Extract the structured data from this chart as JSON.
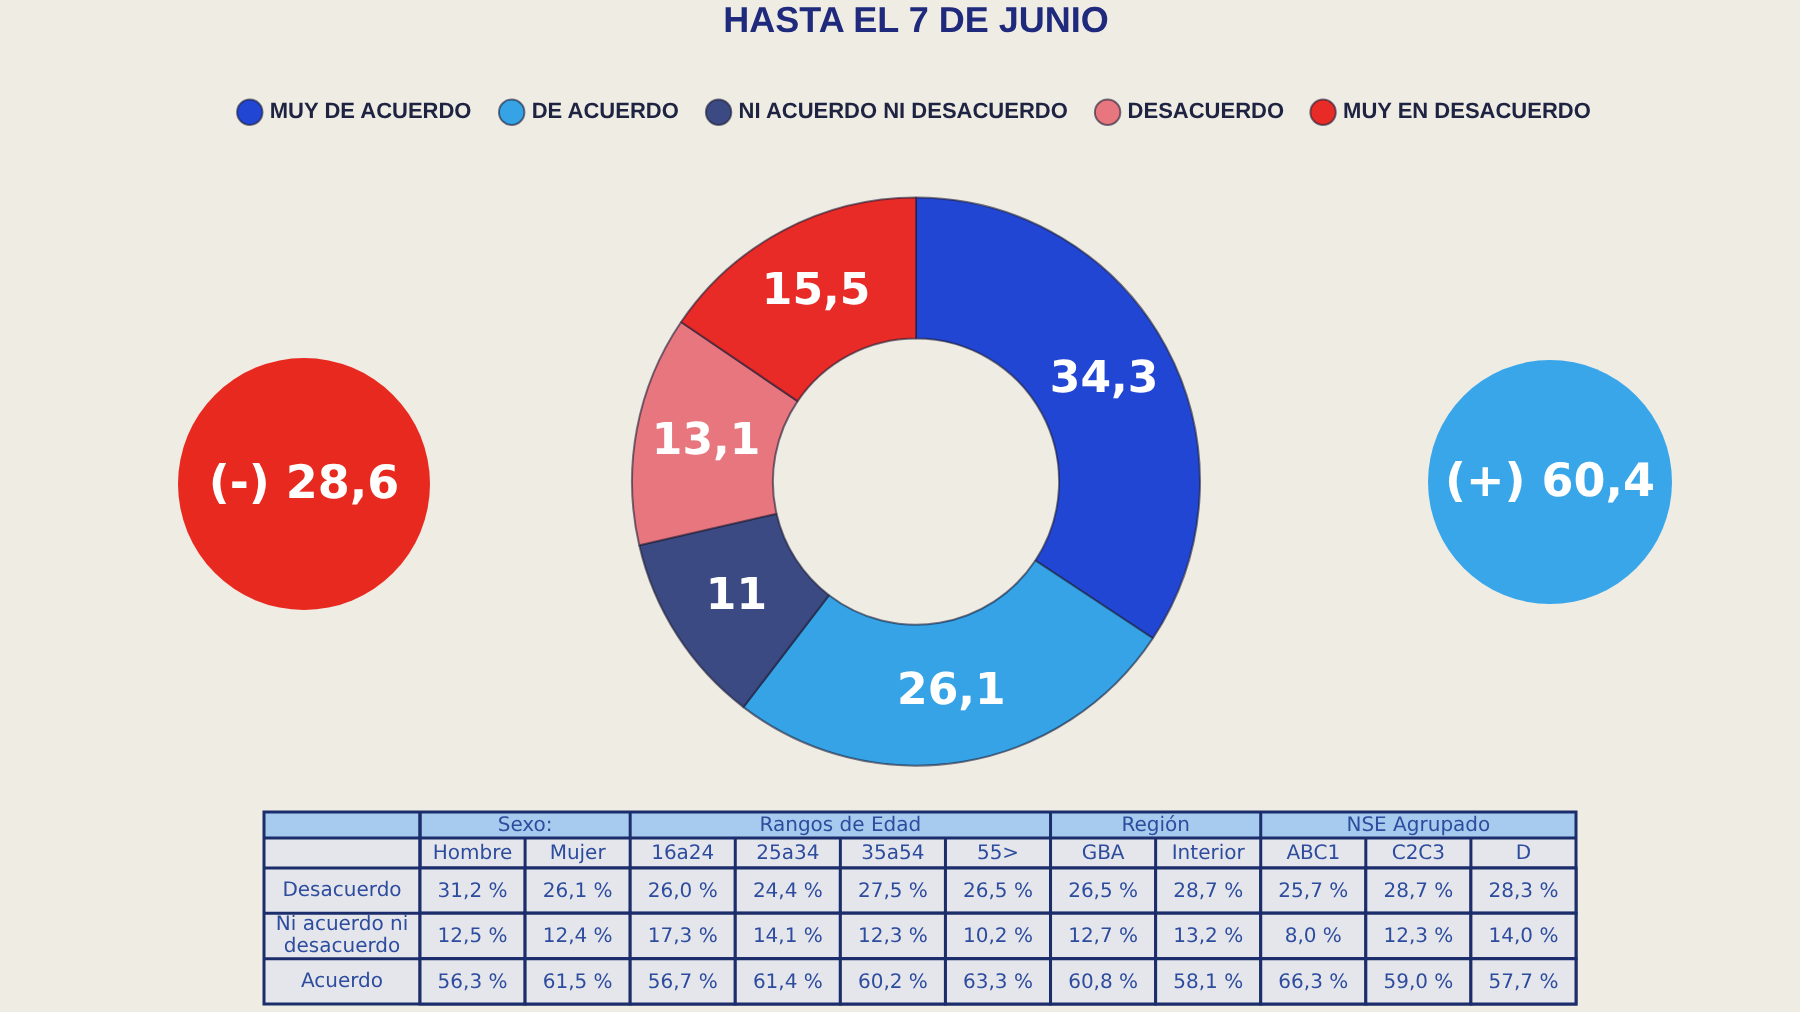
{
  "chart_data": [
    {
      "type": "donut",
      "title": "HASTA EL 7 DE JUNIO",
      "categories": [
        "MUY DE ACUERDO",
        "DE ACUERDO",
        "NI ACUERDO NI DESACUERDO",
        "DESACUERDO",
        "MUY EN DESACUERDO"
      ],
      "values": [
        34.3,
        26.1,
        11,
        13.1,
        15.5
      ],
      "colors": [
        "#2146d4",
        "#35a3e6",
        "#3b4a82",
        "#e8767f",
        "#e82b27"
      ],
      "value_labels": [
        "34,3",
        "26,1",
        "11",
        "13,1",
        "15,5"
      ],
      "legend": "top",
      "annotations": [
        "(-) 28,6",
        "(+) 60,4"
      ]
    },
    {
      "type": "heatmap",
      "categories": [
        "Hombre",
        "Mujer",
        "16a24",
        "25a34",
        "35a54",
        "55>",
        "GBA",
        "Interior",
        "ABC1",
        "C2C3",
        "D"
      ],
      "y_categories": [
        "Desacuerdo",
        "Ni acuerdo ni desacuerdo",
        "Acuerdo"
      ],
      "cells": [
        [
          31.2,
          26.1,
          26.0,
          24.4,
          27.5,
          26.5,
          26.5,
          28.7,
          25.7,
          28.7,
          28.3
        ],
        [
          12.5,
          12.4,
          17.3,
          14.1,
          12.3,
          10.2,
          12.7,
          13.2,
          8.0,
          12.3,
          14.0
        ],
        [
          56.3,
          61.5,
          56.7,
          61.4,
          60.2,
          63.3,
          60.8,
          58.1,
          66.3,
          59.0,
          57.7
        ]
      ],
      "cell_labels": [
        [
          "31,2 %",
          "26,1 %",
          "26,0 %",
          "24,4 %",
          "27,5 %",
          "26,5 %",
          "26,5 %",
          "28,7 %",
          "25,7 %",
          "28,7 %",
          "28,3 %"
        ],
        [
          "12,5 %",
          "12,4 %",
          "17,3 %",
          "14,1 %",
          "12,3 %",
          "10,2 %",
          "12,7 %",
          "13,2 %",
          "8,0 %",
          "12,3 %",
          "14,0 %"
        ],
        [
          "56,3 %",
          "61,5 %",
          "56,7 %",
          "61,4 %",
          "60,2 %",
          "63,3 %",
          "60,8 %",
          "58,1 %",
          "66,3 %",
          "59,0 %",
          "57,7 %"
        ]
      ],
      "annotations": [
        "Sexo:",
        "Rangos de Edad",
        "Región",
        "NSE Agrupado"
      ]
    }
  ]
}
